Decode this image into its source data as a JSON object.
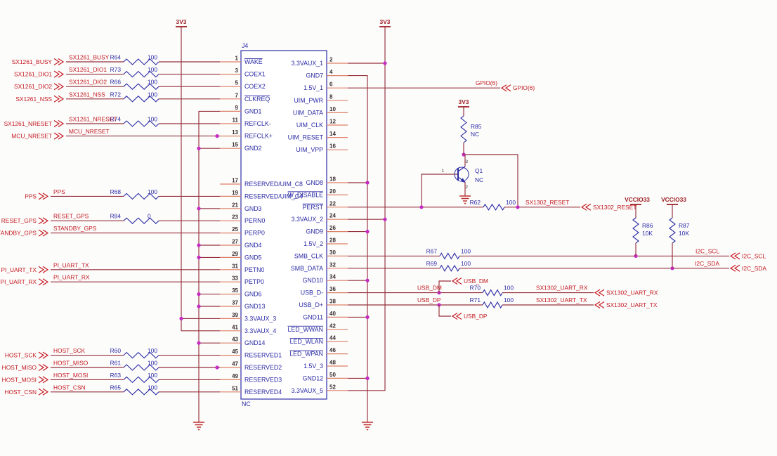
{
  "schematic": {
    "colors": {
      "wire": "#96303c",
      "stub": "#de8068",
      "red_label": "#c4181f",
      "blue": "#2b2aa5",
      "magenta": "#c42ac4",
      "power": "#9e1f24",
      "ground": "#c03030",
      "pin_number": "#3a2c2e",
      "connector": "#3d3dae",
      "background": "#fcfcfb"
    },
    "power_rails": {
      "v33": "3V3"
    },
    "connector": {
      "ref": "J4",
      "bottom_note": "NC",
      "left_pins": [
        {
          "num": "1",
          "name": "WAKE",
          "bar": true
        },
        {
          "num": "3",
          "name": "COEX1"
        },
        {
          "num": "5",
          "name": "COEX2"
        },
        {
          "num": "7",
          "name": "CLKREQ",
          "bar": true
        },
        {
          "num": "9",
          "name": "GND1"
        },
        {
          "num": "11",
          "name": "REFCLK-"
        },
        {
          "num": "13",
          "name": "REFCLK+"
        },
        {
          "num": "15",
          "name": "GND2"
        },
        {
          "num": "17",
          "name": "RESERVED/UIM_C8"
        },
        {
          "num": "19",
          "name": "RESERVED/UIM_C4"
        },
        {
          "num": "21",
          "name": "GND3"
        },
        {
          "num": "23",
          "name": "PERN0"
        },
        {
          "num": "25",
          "name": "PERP0"
        },
        {
          "num": "27",
          "name": "GND4"
        },
        {
          "num": "29",
          "name": "GND5"
        },
        {
          "num": "31",
          "name": "PETN0"
        },
        {
          "num": "33",
          "name": "PETP0"
        },
        {
          "num": "35",
          "name": "GND6"
        },
        {
          "num": "37",
          "name": "GND13"
        },
        {
          "num": "39",
          "name": "3.3VAUX_3"
        },
        {
          "num": "41",
          "name": "3.3VAUX_4"
        },
        {
          "num": "43",
          "name": "GND14"
        },
        {
          "num": "45",
          "name": "RESERVED1"
        },
        {
          "num": "47",
          "name": "RESERVED2"
        },
        {
          "num": "49",
          "name": "RESERVED3"
        },
        {
          "num": "51",
          "name": "RESERVED4"
        }
      ],
      "right_pins": [
        {
          "num": "2",
          "name": "3.3VAUX_1"
        },
        {
          "num": "4",
          "name": "GND7"
        },
        {
          "num": "6",
          "name": "1.5V_1"
        },
        {
          "num": "8",
          "name": "UIM_PWR"
        },
        {
          "num": "10",
          "name": "UIM_DATA"
        },
        {
          "num": "12",
          "name": "UIM_CLK"
        },
        {
          "num": "14",
          "name": "UIM_RESET"
        },
        {
          "num": "16",
          "name": "UIM_VPP"
        },
        {
          "num": "18",
          "name": "GND8"
        },
        {
          "num": "20",
          "name": "W_DISABLE",
          "bar": true
        },
        {
          "num": "22",
          "name": "PERST",
          "bar": true
        },
        {
          "num": "24",
          "name": "3.3VAUX_2"
        },
        {
          "num": "26",
          "name": "GND9"
        },
        {
          "num": "28",
          "name": "1.5V_2"
        },
        {
          "num": "30",
          "name": "SMB_CLK"
        },
        {
          "num": "32",
          "name": "SMB_DATA"
        },
        {
          "num": "34",
          "name": "GND10"
        },
        {
          "num": "36",
          "name": "USB_D-"
        },
        {
          "num": "38",
          "name": "USB_D+"
        },
        {
          "num": "40",
          "name": "GND11"
        },
        {
          "num": "42",
          "name": "LED_WWAN",
          "bar": true
        },
        {
          "num": "44",
          "name": "LED_WLAN",
          "bar": true
        },
        {
          "num": "46",
          "name": "LED_WPAN",
          "bar": true
        },
        {
          "num": "48",
          "name": "1.5V_3"
        },
        {
          "num": "50",
          "name": "GND12"
        },
        {
          "num": "52",
          "name": "3.3VAUX_5"
        }
      ]
    },
    "left_nets": [
      {
        "port": "SX1261_BUSY",
        "net": "SX1261_BUSY",
        "res_ref": "R64",
        "res_val": "100"
      },
      {
        "port": "SX1261_DIO1",
        "net": "SX1261_DIO1",
        "res_ref": "R73",
        "res_val": "100"
      },
      {
        "port": "SX1261_DIO2",
        "net": "SX1261_DIO2",
        "res_ref": "R66",
        "res_val": "100"
      },
      {
        "port": "SX1261_NSS",
        "net": "SX1261_NSS",
        "res_ref": "R72",
        "res_val": "100"
      },
      {
        "port": "SX1261_NRESET",
        "net": "SX1261_NRESET",
        "res_ref": "R74",
        "res_val": "100"
      },
      {
        "port": "MCU_NRESET",
        "net": "MCU_NRESET"
      },
      {
        "port": "PPS",
        "net": "PPS",
        "res_ref": "R68",
        "res_val": "100"
      },
      {
        "port": "RESET_GPS",
        "net": "RESET_GPS",
        "res_ref": "R84",
        "res_val": "0"
      },
      {
        "port": "STANDBY_GPS",
        "net": "STANDBY_GPS"
      },
      {
        "port": "PI_UART_TX",
        "net": "PI_UART_TX"
      },
      {
        "port": "PI_UART_RX",
        "net": "PI_UART_RX"
      },
      {
        "port": "HOST_SCK",
        "net": "HOST_SCK",
        "res_ref": "R60",
        "res_val": "100"
      },
      {
        "port": "HOST_MISO",
        "net": "HOST_MISO",
        "res_ref": "R61",
        "res_val": "100"
      },
      {
        "port": "HOST_MOSI",
        "net": "HOST_MOSI",
        "res_ref": "R63",
        "res_val": "100"
      },
      {
        "port": "HOST_CSN",
        "net": "HOST_CSN",
        "res_ref": "R65",
        "res_val": "100"
      }
    ],
    "right_nets": {
      "gpio": {
        "net": "GPIO(6)",
        "port": "GPIO(6)"
      },
      "reset": {
        "res_ref": "R62",
        "res_val": "100",
        "net": "SX1302_RESET",
        "port": "SX1302_RESET"
      },
      "i2c_scl": {
        "res_ref": "R67",
        "res_val": "100",
        "net": "I2C_SCL",
        "port": "I2C_SCL"
      },
      "i2c_sda": {
        "res_ref": "R69",
        "res_val": "100",
        "net": "I2C_SDA",
        "port": "I2C_SDA"
      },
      "usb_dm": {
        "net": "USB_DM",
        "port": "USB_DM",
        "res_ref": "R70",
        "res_val": "100",
        "out_net": "SX1302_UART_RX",
        "out_port": "SX1302_UART_RX"
      },
      "usb_dp": {
        "net": "USB_DP",
        "port": "USB_DP",
        "res_ref": "R71",
        "res_val": "100",
        "out_net": "SX1302_UART_TX",
        "out_port": "SX1302_UART_TX"
      }
    },
    "pullups": [
      {
        "ref": "R86",
        "val": "10K",
        "rail": "VCCIO33"
      },
      {
        "ref": "R87",
        "val": "10K",
        "rail": "VCCIO33"
      }
    ],
    "transistor": {
      "ref": "Q1",
      "note": "NC",
      "base_pin": "1",
      "collector_pin": "3",
      "emitter_pin": "2"
    },
    "r85": {
      "ref": "R85",
      "note": "NC"
    }
  }
}
